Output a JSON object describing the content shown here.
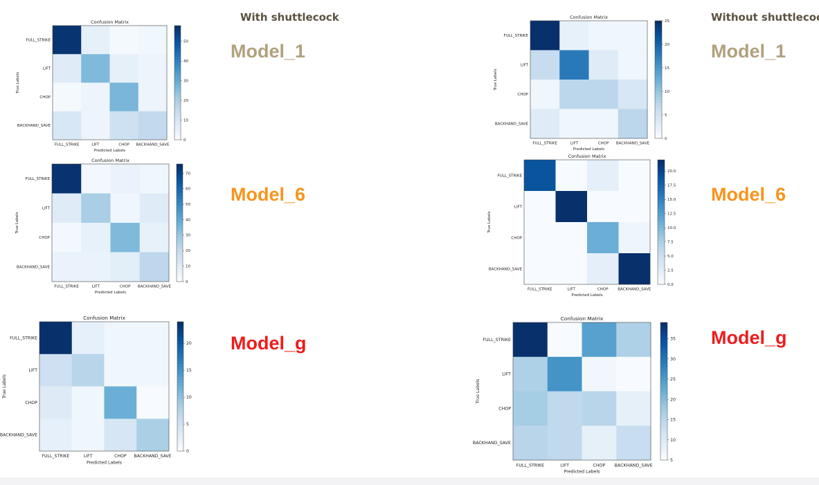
{
  "headers": {
    "with": "With shuttlecock",
    "without": "Without shuttlecock"
  },
  "colors": {
    "model_1": "#b1a17d",
    "model_6": "#f7941d",
    "model_g": "#ee1c1c"
  },
  "models": [
    {
      "label": "Model_1",
      "color_key": "model_1"
    },
    {
      "label": "Model_6",
      "color_key": "model_6"
    },
    {
      "label": "Model_g",
      "color_key": "model_g"
    },
    {
      "label": "Model_1",
      "color_key": "model_1"
    },
    {
      "label": "Model_6",
      "color_key": "model_6"
    },
    {
      "label": "Model_g",
      "color_key": "model_g"
    }
  ],
  "chart_data": [
    {
      "type": "heatmap",
      "title": "Confusion Matrix",
      "xlabel": "Predicted Labels",
      "ylabel": "True Labels",
      "categories": [
        "FULL_STRIKE",
        "LIFT",
        "CHOP",
        "BACKHAND_SAVE"
      ],
      "values": [
        [
          57,
          5,
          1,
          2
        ],
        [
          7,
          26,
          5,
          3
        ],
        [
          1,
          3,
          27,
          3
        ],
        [
          9,
          3,
          12,
          15
        ]
      ],
      "colorbar_ticks": [
        0,
        10,
        20,
        30,
        40,
        50
      ],
      "vmax": 58
    },
    {
      "type": "heatmap",
      "title": "Confusion Matrix",
      "xlabel": "Predicted Labels",
      "ylabel": "True Labels",
      "categories": [
        "FULL_STRIKE",
        "LIFT",
        "CHOP",
        "BACKHAND_SAVE"
      ],
      "values": [
        [
          75,
          2,
          5,
          3
        ],
        [
          9,
          26,
          3,
          9
        ],
        [
          2,
          6,
          34,
          6
        ],
        [
          5,
          5,
          8,
          21
        ]
      ],
      "colorbar_ticks": [
        0,
        10,
        20,
        30,
        40,
        50,
        60,
        70
      ],
      "vmax": 76
    },
    {
      "type": "heatmap",
      "title": "Confusion Matrix",
      "xlabel": "Predicted Labels",
      "ylabel": "True Labels",
      "categories": [
        "FULL_STRIKE",
        "LIFT",
        "CHOP",
        "BACKHAND_SAVE"
      ],
      "values": [
        [
          24,
          2,
          1,
          1
        ],
        [
          5,
          7,
          1,
          1
        ],
        [
          3,
          1,
          12,
          0
        ],
        [
          2,
          1,
          4,
          8
        ]
      ],
      "colorbar_ticks": [
        0,
        5,
        10,
        15,
        20
      ],
      "vmax": 24
    },
    {
      "type": "heatmap",
      "title": "Confusion Matrix",
      "xlabel": "Predicted Labels",
      "ylabel": "True Labels",
      "categories": [
        "FULL_STRIKE",
        "LIFT",
        "CHOP",
        "BACKHAND_SAVE"
      ],
      "values": [
        [
          25,
          2,
          1,
          1
        ],
        [
          6,
          18,
          3,
          1
        ],
        [
          1,
          7,
          7,
          4
        ],
        [
          3,
          1,
          1,
          7
        ]
      ],
      "colorbar_ticks": [
        0,
        5,
        10,
        15,
        20,
        25
      ],
      "vmax": 25
    },
    {
      "type": "heatmap",
      "title": "Confusion Matrix",
      "xlabel": "Predicted Labels",
      "ylabel": "True Labels",
      "categories": [
        "FULL_STRIKE",
        "LIFT",
        "CHOP",
        "BACKHAND_SAVE"
      ],
      "values": [
        [
          19,
          0,
          2,
          0
        ],
        [
          0,
          22,
          0,
          0
        ],
        [
          0,
          0,
          11,
          1
        ],
        [
          0,
          0,
          2,
          22
        ]
      ],
      "colorbar_ticks": [
        0.0,
        2.5,
        5.0,
        7.5,
        10.0,
        12.5,
        15.0,
        17.5,
        20.0
      ],
      "vmax": 22
    },
    {
      "type": "heatmap",
      "title": "Confusion Matrix",
      "xlabel": "Predicted Labels",
      "ylabel": "True Labels",
      "categories": [
        "FULL_STRIKE",
        "LIFT",
        "CHOP",
        "BACKHAND_SAVE"
      ],
      "values": [
        [
          39,
          5,
          24,
          16
        ],
        [
          16,
          26,
          6,
          5
        ],
        [
          17,
          14,
          15,
          8
        ],
        [
          15,
          14,
          8,
          13
        ]
      ],
      "colorbar_ticks": [
        5,
        10,
        15,
        20,
        25,
        30,
        35
      ],
      "vmin": 5,
      "vmax": 39
    }
  ]
}
